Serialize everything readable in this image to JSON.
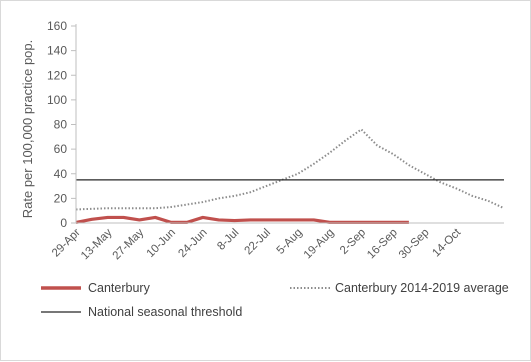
{
  "chart_data": {
    "type": "line",
    "ylabel": "Rate per 100,000 practice pop.",
    "xlabel": "",
    "title": "",
    "ylim": [
      0,
      160
    ],
    "yticks": [
      "0",
      "20",
      "40",
      "60",
      "80",
      "100",
      "120",
      "140",
      "160"
    ],
    "xtick_labels": [
      "29-Apr",
      "13-May",
      "27-May",
      "10-Jun",
      "24-Jun",
      "8-Jul",
      "22-Jul",
      "5-Aug",
      "19-Aug",
      "2-Sep",
      "16-Sep",
      "30-Sep",
      "14-Oct"
    ],
    "grid": "horizontal",
    "legend_position": "bottom",
    "series": [
      {
        "name": "Canterbury",
        "style": "solid-thick",
        "color": "#c0504d",
        "values": [
          0.5,
          3,
          4.5,
          4.5,
          2.5,
          4.5,
          0.5,
          0.5,
          4.5,
          2.5,
          2,
          2.5,
          2.5,
          2.5,
          2.5,
          2.5,
          0.5,
          0.5,
          0.5,
          0.5,
          0.5,
          0.5
        ]
      },
      {
        "name": "Canterbury 2014-2019 average",
        "style": "dotted",
        "color": "#8c8c8c",
        "values": [
          11,
          11.5,
          12,
          12,
          12,
          12,
          13,
          15,
          17,
          20,
          22,
          25,
          30,
          35,
          40,
          48,
          57,
          67,
          76,
          63,
          56,
          47,
          40,
          33,
          28,
          22,
          18,
          12
        ]
      },
      {
        "name": "National seasonal threshold",
        "style": "solid",
        "color": "#262626",
        "value": 35
      }
    ]
  },
  "colors": {
    "axis": "#bfbfbf",
    "text": "#595959"
  }
}
